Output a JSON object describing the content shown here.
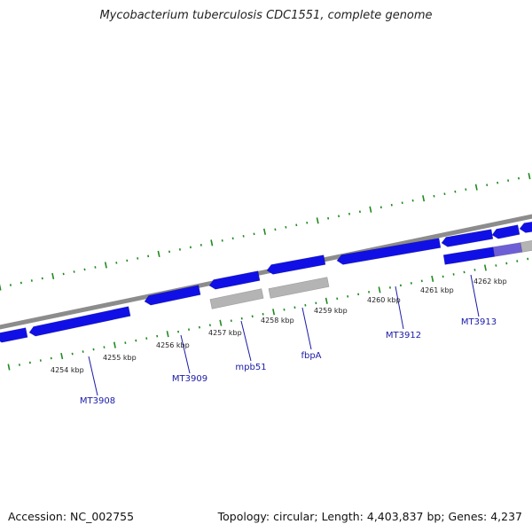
{
  "title": "Mycobacterium tuberculosis CDC1551, complete genome",
  "footer": {
    "accession": "Accession: NC_002755",
    "summary": "Topology: circular; Length: 4,403,837 bp; Genes: 4,237"
  },
  "colors": {
    "backbone": "#8c8c8c",
    "gene_forward": "#1010e6",
    "gene_reverse": "#1010e6",
    "gene_gray": "#b4b4b4",
    "gene_highlight": "#6f5fd6",
    "tick": "#1f8a1f",
    "label": "#1a1aa8",
    "leader": "#1a1aa8"
  },
  "scale_labels": [
    "4254 kbp",
    "4255 kbp",
    "4256 kbp",
    "4257 kbp",
    "4258 kbp",
    "4259 kbp",
    "4260 kbp",
    "4261 kbp",
    "4262 kbp"
  ],
  "gene_labels": [
    "MT3908",
    "MT3909",
    "mpb51",
    "fbpA",
    "MT3912",
    "MT3913"
  ]
}
